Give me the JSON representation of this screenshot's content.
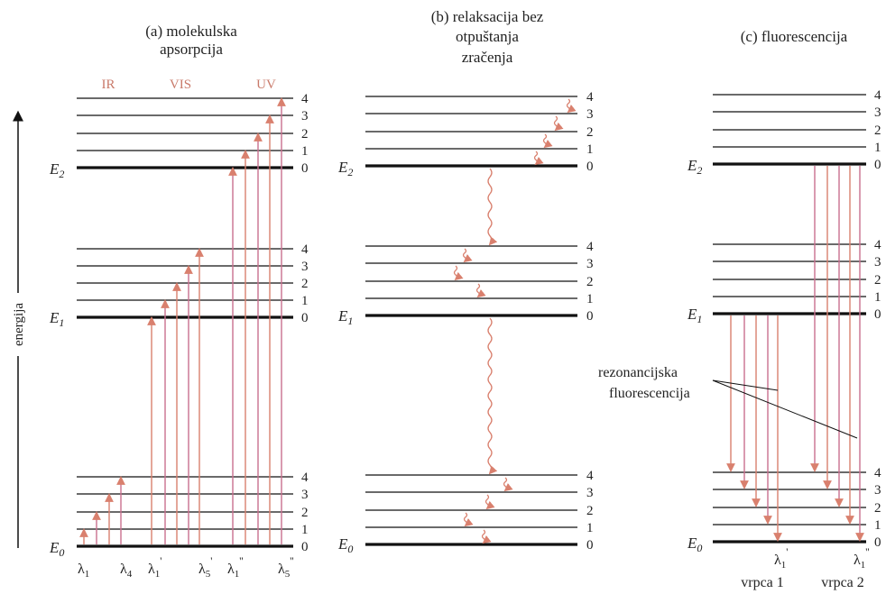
{
  "panels": {
    "a": {
      "title_line1": "(a) molekulska",
      "title_line2": "apsorpcija"
    },
    "b": {
      "title_line1": "(b) relaksacija bez",
      "title_line2": "otpuštanja",
      "title_line3": "zračenja"
    },
    "c": {
      "title_line1": "(c) fluorescencija"
    }
  },
  "axis": {
    "label": "energija"
  },
  "energy_labels": {
    "e0": "E",
    "e0_sub": "0",
    "e1": "E",
    "e1_sub": "1",
    "e2": "E",
    "e2_sub": "2"
  },
  "level_numbers": [
    "0",
    "1",
    "2",
    "3",
    "4"
  ],
  "bands": {
    "ir": "IR",
    "vis": "VIS",
    "uv": "UV"
  },
  "wavelengths_a": {
    "l1": "λ",
    "l1_sub": "1",
    "l4": "λ",
    "l4_sub": "4",
    "l1p": "λ",
    "l1p_sub": "1",
    "l1p_prime": "'",
    "l5p": "λ",
    "l5p_sub": "5",
    "l5p_prime": "'",
    "l1pp": "λ",
    "l1pp_sub": "1",
    "l1pp_prime": "''",
    "l5pp": "λ",
    "l5pp_sub": "5",
    "l5pp_prime": "''"
  },
  "wavelengths_c": {
    "l1p": "λ",
    "l1p_sub": "1",
    "l1p_prime": "'",
    "l1pp": "λ",
    "l1pp_sub": "1",
    "l1pp_prime": "''"
  },
  "annotations": {
    "resonance_line1": "rezonancijska",
    "resonance_line2": "fluorescencija",
    "band1": "vrpca 1",
    "band2": "vrpca 2"
  },
  "colors": {
    "arrow": "#d9806e",
    "arrow_alt": "#c9708f",
    "level": "#111111"
  }
}
